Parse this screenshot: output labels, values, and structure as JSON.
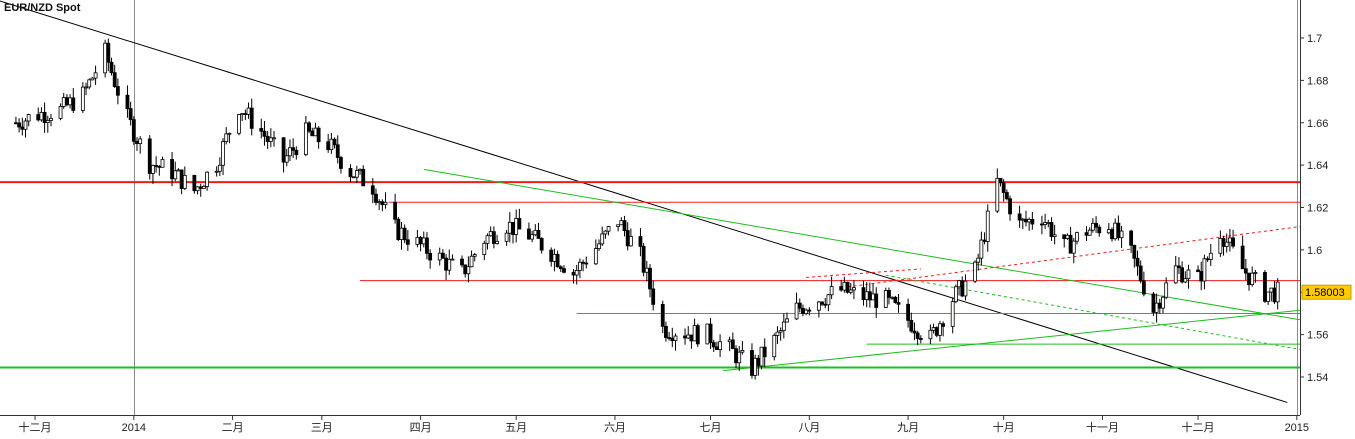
{
  "chart_data": {
    "type": "candlestick",
    "title": "EUR/NZD Spot",
    "last_price": "1.58003",
    "ylim": [
      1.525,
      1.715
    ],
    "y_ticks": [
      "1.7",
      "1.68",
      "1.66",
      "1.64",
      "1.62",
      "1.6",
      "1.58",
      "1.56",
      "1.54"
    ],
    "y_tick_values": [
      1.7,
      1.68,
      1.66,
      1.64,
      1.62,
      1.6,
      1.58,
      1.56,
      1.54
    ],
    "x_ticks": [
      "十二月",
      "2014",
      "二月",
      "三月",
      "四月",
      "五月",
      "六月",
      "七月",
      "八月",
      "九月",
      "十月",
      "十一月",
      "十二月",
      "2015"
    ],
    "x_tick_dates": [
      "2013-12-01",
      "2014-01-01",
      "2014-02-01",
      "2014-03-01",
      "2014-04-01",
      "2014-05-01",
      "2014-06-01",
      "2014-07-01",
      "2014-08-01",
      "2014-09-01",
      "2014-10-01",
      "2014-11-01",
      "2014-12-01",
      "2015-01-01"
    ],
    "separators": [
      "2014-01-01",
      "2015-01-01"
    ],
    "closes": [
      {
        "date": "2013-11-25",
        "close": 1.66
      },
      {
        "date": "2013-12-02",
        "close": 1.664
      },
      {
        "date": "2013-12-09",
        "close": 1.666
      },
      {
        "date": "2013-12-16",
        "close": 1.673
      },
      {
        "date": "2013-12-23",
        "close": 1.693
      },
      {
        "date": "2013-12-30",
        "close": 1.662
      },
      {
        "date": "2014-01-06",
        "close": 1.641
      },
      {
        "date": "2014-01-13",
        "close": 1.637
      },
      {
        "date": "2014-01-20",
        "close": 1.628
      },
      {
        "date": "2014-01-27",
        "close": 1.641
      },
      {
        "date": "2014-02-03",
        "close": 1.668
      },
      {
        "date": "2014-02-10",
        "close": 1.656
      },
      {
        "date": "2014-02-17",
        "close": 1.642
      },
      {
        "date": "2014-02-24",
        "close": 1.655
      },
      {
        "date": "2014-03-03",
        "close": 1.65
      },
      {
        "date": "2014-03-10",
        "close": 1.637
      },
      {
        "date": "2014-03-17",
        "close": 1.63
      },
      {
        "date": "2014-03-24",
        "close": 1.61
      },
      {
        "date": "2014-03-31",
        "close": 1.603
      },
      {
        "date": "2014-04-07",
        "close": 1.596
      },
      {
        "date": "2014-04-14",
        "close": 1.589
      },
      {
        "date": "2014-04-21",
        "close": 1.605
      },
      {
        "date": "2014-04-28",
        "close": 1.612
      },
      {
        "date": "2014-05-05",
        "close": 1.607
      },
      {
        "date": "2014-05-12",
        "close": 1.599
      },
      {
        "date": "2014-05-19",
        "close": 1.589
      },
      {
        "date": "2014-05-26",
        "close": 1.601
      },
      {
        "date": "2014-06-02",
        "close": 1.614
      },
      {
        "date": "2014-06-09",
        "close": 1.597
      },
      {
        "date": "2014-06-16",
        "close": 1.563
      },
      {
        "date": "2014-06-23",
        "close": 1.561
      },
      {
        "date": "2014-06-30",
        "close": 1.56
      },
      {
        "date": "2014-07-07",
        "close": 1.553
      },
      {
        "date": "2014-07-14",
        "close": 1.544
      },
      {
        "date": "2014-07-21",
        "close": 1.557
      },
      {
        "date": "2014-07-28",
        "close": 1.572
      },
      {
        "date": "2014-08-04",
        "close": 1.577
      },
      {
        "date": "2014-08-11",
        "close": 1.581
      },
      {
        "date": "2014-08-18",
        "close": 1.578
      },
      {
        "date": "2014-08-25",
        "close": 1.576
      },
      {
        "date": "2014-09-01",
        "close": 1.567
      },
      {
        "date": "2014-09-08",
        "close": 1.558
      },
      {
        "date": "2014-09-15",
        "close": 1.577
      },
      {
        "date": "2014-09-22",
        "close": 1.59
      },
      {
        "date": "2014-09-29",
        "close": 1.632
      },
      {
        "date": "2014-10-06",
        "close": 1.612
      },
      {
        "date": "2014-10-13",
        "close": 1.616
      },
      {
        "date": "2014-10-20",
        "close": 1.601
      },
      {
        "date": "2014-10-27",
        "close": 1.609
      },
      {
        "date": "2014-11-03",
        "close": 1.612
      },
      {
        "date": "2014-11-10",
        "close": 1.598
      },
      {
        "date": "2014-11-17",
        "close": 1.572
      },
      {
        "date": "2014-11-24",
        "close": 1.591
      },
      {
        "date": "2014-12-01",
        "close": 1.586
      },
      {
        "date": "2014-12-08",
        "close": 1.609
      },
      {
        "date": "2014-12-15",
        "close": 1.591
      },
      {
        "date": "2014-12-22",
        "close": 1.58
      }
    ],
    "trend_lines": [
      {
        "color": "#000000",
        "from": [
          "2013-11-20",
          1.7175
        ],
        "to": [
          "2014-12-29",
          1.528
        ]
      },
      {
        "color": "#ee1c1c",
        "from": [
          "2013-11-20",
          1.632
        ],
        "to": [
          "2015-01-02",
          1.632
        ]
      },
      {
        "color": "#ee1c1c",
        "from": [
          "2014-03-22",
          1.6225
        ],
        "to": [
          "2015-01-02",
          1.6225
        ]
      },
      {
        "color": "#ee1c1c",
        "from": [
          "2014-03-13",
          1.5855
        ],
        "to": [
          "2015-01-02",
          1.5855
        ]
      },
      {
        "color": "#ee1c1c",
        "dashed": true,
        "from": [
          "2014-08-13",
          1.5825
        ],
        "to": [
          "2015-01-02",
          1.611
        ]
      },
      {
        "color": "#ee1c1c",
        "dashed": true,
        "from": [
          "2014-07-31",
          1.587
        ],
        "to": [
          "2014-09-05",
          1.591
        ]
      },
      {
        "color": "#1cbd1c",
        "from": [
          "2013-11-20",
          1.5445
        ],
        "to": [
          "2015-01-02",
          1.5445
        ]
      },
      {
        "color": "#1cbd1c",
        "from": [
          "2014-04-02",
          1.638
        ],
        "to": [
          "2015-01-02",
          1.567
        ]
      },
      {
        "color": "#1cbd1c",
        "from": [
          "2014-05-20",
          1.57
        ],
        "to": [
          "2015-01-02",
          1.57
        ]
      },
      {
        "color": "#1cbd1c",
        "from": [
          "2014-07-05",
          1.543
        ],
        "to": [
          "2015-01-02",
          1.5715
        ]
      },
      {
        "color": "#1cbd1c",
        "from": [
          "2014-08-19",
          1.5555
        ],
        "to": [
          "2015-01-02",
          1.5555
        ]
      },
      {
        "color": "#1cbd1c",
        "dashed": true,
        "from": [
          "2014-08-25",
          1.588
        ],
        "to": [
          "2015-01-02",
          1.553
        ]
      }
    ],
    "grid": false,
    "legend": "none"
  }
}
